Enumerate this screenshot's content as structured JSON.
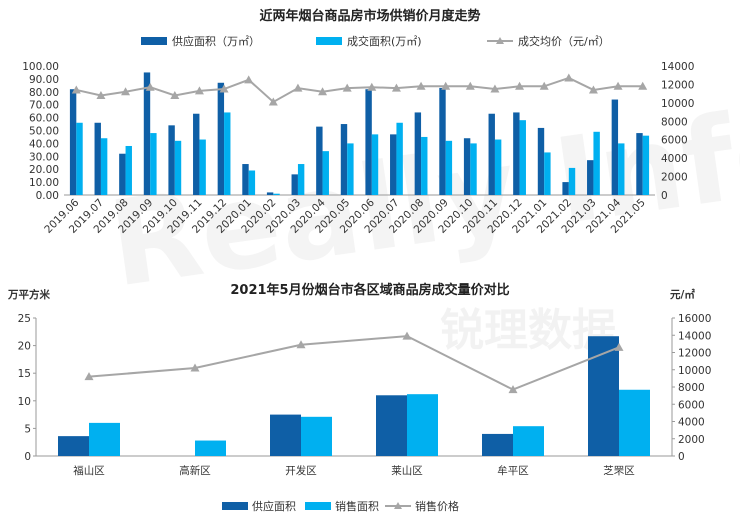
{
  "chart_data": [
    {
      "type": "bar",
      "title": "近两年烟台商品房市场供销价月度走势",
      "categories": [
        "2019.06",
        "2019.07",
        "2019.08",
        "2019.09",
        "2019.10",
        "2019.11",
        "2019.12",
        "2020.01",
        "2020.02",
        "2020.03",
        "2020.04",
        "2020.05",
        "2020.06",
        "2020.07",
        "2020.08",
        "2020.09",
        "2020.10",
        "2020.11",
        "2020.12",
        "2021.01",
        "2021.02",
        "2021.03",
        "2021.04",
        "2021.05"
      ],
      "series": [
        {
          "name": "供应面积（万㎡）",
          "kind": "bar",
          "axis": "left",
          "color": "#0f5fa6",
          "values": [
            82,
            56,
            32,
            95,
            54,
            63,
            87,
            24,
            2,
            16,
            53,
            55,
            82,
            47,
            64,
            83,
            44,
            63,
            64,
            52,
            10,
            27,
            74,
            48
          ]
        },
        {
          "name": "成交面积(万㎡)",
          "kind": "bar",
          "axis": "left",
          "color": "#00b0f0",
          "values": [
            56,
            44,
            38,
            48,
            42,
            43,
            64,
            19,
            1,
            24,
            34,
            40,
            47,
            56,
            45,
            42,
            40,
            43,
            58,
            33,
            21,
            49,
            40,
            46
          ]
        },
        {
          "name": "成交均价（元/㎡）",
          "kind": "line",
          "axis": "right",
          "color": "#a6a6a6",
          "values": [
            11400,
            10800,
            11200,
            11700,
            10800,
            11300,
            11500,
            12500,
            10100,
            11600,
            11200,
            11600,
            11700,
            11600,
            11800,
            11800,
            11800,
            11500,
            11800,
            11800,
            12700,
            11400,
            11800,
            11800
          ]
        }
      ],
      "y_left_ticks": [
        "0.00",
        "10.00",
        "20.00",
        "30.00",
        "40.00",
        "50.00",
        "60.00",
        "70.00",
        "80.00",
        "90.00",
        "100.00"
      ],
      "y_left_range": [
        0,
        100
      ],
      "y_right_ticks": [
        "0",
        "2000",
        "4000",
        "6000",
        "8000",
        "10000",
        "12000",
        "14000"
      ],
      "y_right_range": [
        0,
        14000
      ],
      "grid": false,
      "legend_position": "top"
    },
    {
      "type": "bar",
      "title": "2021年5月份烟台市各区域商品房成交量价对比",
      "ylabel_left": "万平方米",
      "ylabel_right": "元/㎡",
      "categories": [
        "福山区",
        "高新区",
        "开发区",
        "莱山区",
        "牟平区",
        "芝罘区"
      ],
      "series": [
        {
          "name": "供应面积",
          "kind": "bar",
          "axis": "left",
          "color": "#0f5fa6",
          "values": [
            3.6,
            0,
            7.5,
            11,
            4,
            21.7
          ]
        },
        {
          "name": "销售面积",
          "kind": "bar",
          "axis": "left",
          "color": "#00b0f0",
          "values": [
            6,
            2.8,
            7.1,
            11.2,
            5.4,
            12
          ]
        },
        {
          "name": "销售价格",
          "kind": "line",
          "axis": "right",
          "color": "#a6a6a6",
          "values": [
            9200,
            10200,
            12900,
            13900,
            7700,
            12600
          ]
        }
      ],
      "y_left_ticks": [
        "0",
        "5",
        "10",
        "15",
        "20",
        "25"
      ],
      "y_left_range": [
        0,
        25
      ],
      "y_right_ticks": [
        "0",
        "2000",
        "4000",
        "6000",
        "8000",
        "10000",
        "12000",
        "14000",
        "16000"
      ],
      "y_right_range": [
        0,
        16000
      ],
      "grid": false,
      "legend_position": "bottom"
    }
  ],
  "watermark": {
    "text_latin": "Really Info",
    "text_cn": "锐理数据"
  }
}
